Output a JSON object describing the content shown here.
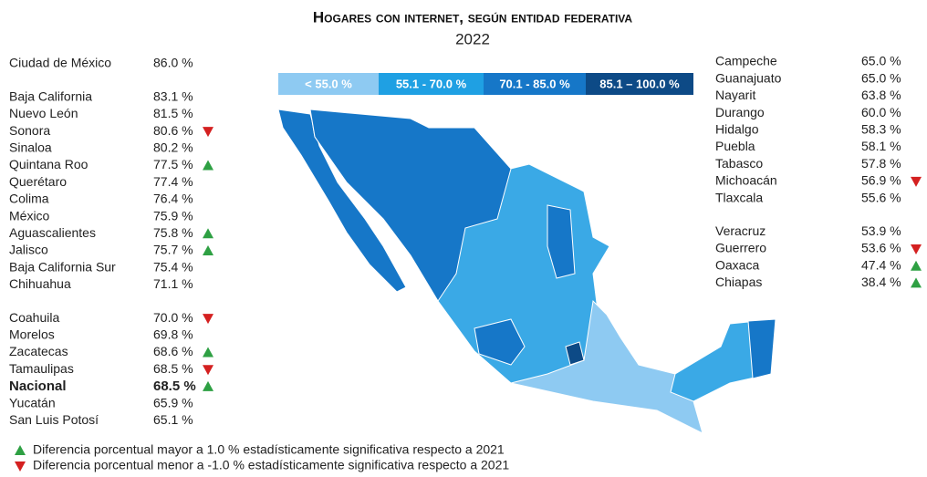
{
  "header": {
    "title": "Hogares con internet, según entidad federativa",
    "subtitle": "2022"
  },
  "legend": [
    {
      "label": "< 55.0 %",
      "color": "#8ecaf2"
    },
    {
      "label": "55.1 - 70.0 %",
      "color": "#1fa0e3"
    },
    {
      "label": "70.1 - 85.0 %",
      "color": "#1677c8"
    },
    {
      "label": "85.1 – 100.0 %",
      "color": "#0d4a86"
    }
  ],
  "left_groups": [
    [
      {
        "name": "Ciudad de México",
        "value": "86.0 %"
      }
    ],
    [
      {
        "name": "Baja California",
        "value": "83.1 %"
      },
      {
        "name": "Nuevo León",
        "value": "81.5 %"
      },
      {
        "name": "Sonora",
        "value": "80.6 %",
        "trend": "down"
      },
      {
        "name": "Sinaloa",
        "value": "80.2 %"
      },
      {
        "name": "Quintana Roo",
        "value": "77.5 %",
        "trend": "up"
      },
      {
        "name": "Querétaro",
        "value": "77.4 %"
      },
      {
        "name": "Colima",
        "value": "76.4 %"
      },
      {
        "name": "México",
        "value": "75.9 %"
      },
      {
        "name": "Aguascalientes",
        "value": "75.8 %",
        "trend": "up"
      },
      {
        "name": "Jalisco",
        "value": "75.7 %",
        "trend": "up"
      },
      {
        "name": "Baja California Sur",
        "value": "75.4 %"
      },
      {
        "name": "Chihuahua",
        "value": "71.1 %"
      }
    ],
    [
      {
        "name": "Coahuila",
        "value": "70.0 %",
        "trend": "down"
      },
      {
        "name": "Morelos",
        "value": "69.8 %"
      },
      {
        "name": "Zacatecas",
        "value": "68.6 %",
        "trend": "up"
      },
      {
        "name": "Tamaulipas",
        "value": "68.5 %",
        "trend": "down"
      },
      {
        "name": "Nacional",
        "value": "68.5 %",
        "trend": "up",
        "bold": true
      },
      {
        "name": "Yucatán",
        "value": "65.9 %"
      },
      {
        "name": "San Luis Potosí",
        "value": "65.1 %"
      }
    ]
  ],
  "right_groups": [
    [
      {
        "name": "Campeche",
        "value": "65.0 %"
      },
      {
        "name": "Guanajuato",
        "value": "65.0 %"
      },
      {
        "name": "Nayarit",
        "value": "63.8 %"
      },
      {
        "name": "Durango",
        "value": "60.0 %"
      },
      {
        "name": "Hidalgo",
        "value": "58.3 %"
      },
      {
        "name": "Puebla",
        "value": "58.1 %"
      },
      {
        "name": "Tabasco",
        "value": "57.8 %"
      },
      {
        "name": "Michoacán",
        "value": "56.9 %",
        "trend": "down"
      },
      {
        "name": "Tlaxcala",
        "value": "55.6 %"
      }
    ],
    [
      {
        "name": "Veracruz",
        "value": "53.9 %"
      },
      {
        "name": "Guerrero",
        "value": "53.6 %",
        "trend": "down"
      },
      {
        "name": "Oaxaca",
        "value": "47.4 %",
        "trend": "up"
      },
      {
        "name": "Chiapas",
        "value": "38.4 %",
        "trend": "up"
      }
    ]
  ],
  "notes": [
    "Diferencia porcentual mayor a 1.0 % estadísticamente significativa respecto a 2021",
    "Diferencia porcentual menor a -1.0 % estadísticamente significativa respecto a 2021"
  ]
}
